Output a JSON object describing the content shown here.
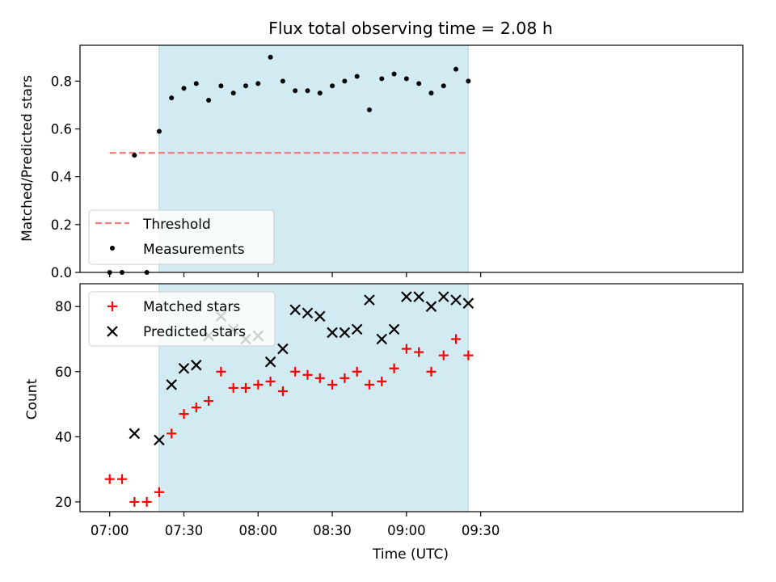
{
  "chart_data": [
    {
      "type": "scatter",
      "title": "Flux total observing time = 2.08 h",
      "xlabel": "",
      "ylabel": "Matched/Predicted stars",
      "ylim": [
        0,
        0.95
      ],
      "yticks": [
        0.0,
        0.2,
        0.4,
        0.6,
        0.8
      ],
      "ytick_labels": [
        "0.0",
        "0.2",
        "0.4",
        "0.6",
        "0.8"
      ],
      "x_unit": "minutes_after_07:00_UTC",
      "xlim": [
        -12,
        256
      ],
      "shaded_span": {
        "x_start": "07:20",
        "x_end": "09:25",
        "color": "#add8e6"
      },
      "threshold": {
        "name": "Threshold",
        "value": 0.5,
        "x_start": "07:00",
        "x_end": "09:25",
        "color": "#f08080"
      },
      "series": [
        {
          "name": "Measurements",
          "color": "#000000",
          "x": [
            "07:00",
            "07:05",
            "07:10",
            "07:15",
            "07:20",
            "07:25",
            "07:30",
            "07:35",
            "07:40",
            "07:45",
            "07:50",
            "07:55",
            "08:00",
            "08:05",
            "08:10",
            "08:15",
            "08:20",
            "08:25",
            "08:30",
            "08:35",
            "08:40",
            "08:45",
            "08:50",
            "08:55",
            "09:00",
            "09:05",
            "09:10",
            "09:15",
            "09:20",
            "09:25"
          ],
          "y": [
            0.0,
            0.0,
            0.49,
            0.0,
            0.59,
            0.73,
            0.77,
            0.79,
            0.72,
            0.78,
            0.75,
            0.78,
            0.79,
            0.9,
            0.8,
            0.76,
            0.76,
            0.75,
            0.78,
            0.8,
            0.82,
            0.68,
            0.81,
            0.83,
            0.81,
            0.79,
            0.75,
            0.78,
            0.85,
            0.8
          ]
        }
      ],
      "legend": {
        "position": "lower-left",
        "entries": [
          "Threshold",
          "Measurements"
        ]
      }
    },
    {
      "type": "scatter",
      "title": "",
      "xlabel": "Time (UTC)",
      "ylabel": "Count",
      "ylim": [
        17,
        87
      ],
      "yticks": [
        20,
        40,
        60,
        80
      ],
      "ytick_labels": [
        "20",
        "40",
        "60",
        "80"
      ],
      "x_unit": "minutes_after_07:00_UTC",
      "xlim": [
        -12,
        256
      ],
      "xticks": [
        0,
        30,
        60,
        90,
        120,
        150
      ],
      "xtick_labels": [
        "07:00",
        "07:30",
        "08:00",
        "08:30",
        "09:00",
        "09:30"
      ],
      "shaded_span": {
        "x_start": "07:20",
        "x_end": "09:25",
        "color": "#add8e6"
      },
      "series": [
        {
          "name": "Matched stars",
          "marker": "plus",
          "color": "#ff0000",
          "x": [
            "07:00",
            "07:05",
            "07:10",
            "07:15",
            "07:20",
            "07:25",
            "07:30",
            "07:35",
            "07:40",
            "07:45",
            "07:50",
            "07:55",
            "08:00",
            "08:05",
            "08:10",
            "08:15",
            "08:20",
            "08:25",
            "08:30",
            "08:35",
            "08:40",
            "08:45",
            "08:50",
            "08:55",
            "09:00",
            "09:05",
            "09:10",
            "09:15",
            "09:20",
            "09:25"
          ],
          "y": [
            27,
            27,
            20,
            20,
            23,
            41,
            47,
            49,
            51,
            60,
            55,
            55,
            56,
            57,
            54,
            60,
            59,
            58,
            56,
            58,
            60,
            56,
            57,
            61,
            67,
            66,
            60,
            65,
            70,
            65
          ]
        },
        {
          "name": "Predicted stars",
          "marker": "x",
          "color": "#000000",
          "x": [
            "07:10",
            "07:20",
            "07:25",
            "07:30",
            "07:35",
            "07:40",
            "07:45",
            "07:50",
            "07:55",
            "08:00",
            "08:05",
            "08:10",
            "08:15",
            "08:20",
            "08:25",
            "08:30",
            "08:35",
            "08:40",
            "08:45",
            "08:50",
            "08:55",
            "09:00",
            "09:05",
            "09:10",
            "09:15",
            "09:20",
            "09:25"
          ],
          "y": [
            41,
            39,
            56,
            61,
            62,
            71,
            77,
            73,
            70,
            71,
            63,
            67,
            79,
            78,
            77,
            72,
            72,
            73,
            82,
            70,
            73,
            83,
            83,
            80,
            83,
            82,
            81
          ]
        }
      ],
      "legend": {
        "position": "upper-left",
        "entries": [
          "Matched stars",
          "Predicted stars"
        ]
      }
    }
  ]
}
